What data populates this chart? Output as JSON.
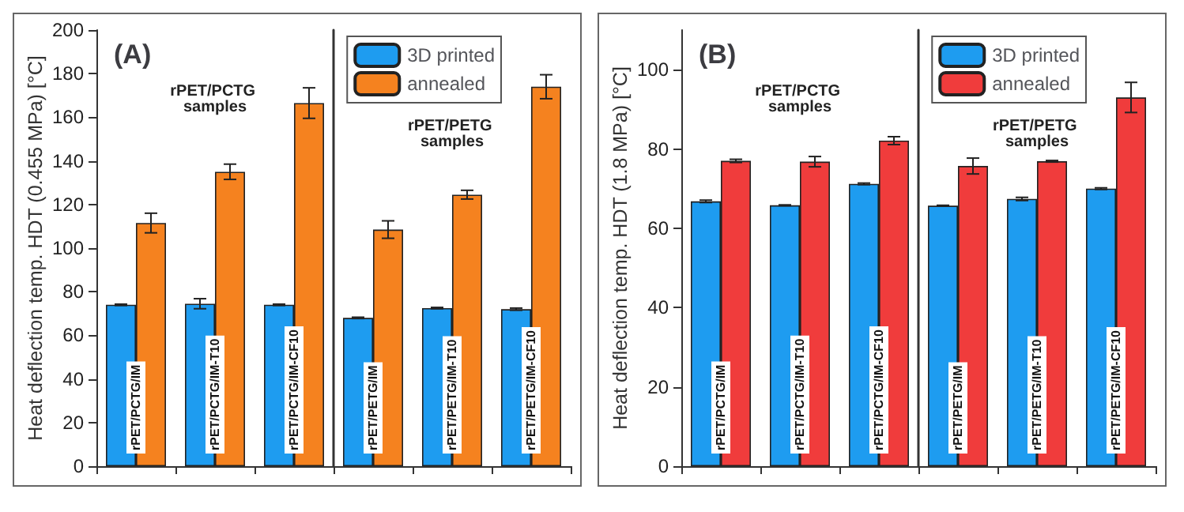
{
  "chart_data": [
    {
      "type": "bar",
      "title": "(A)",
      "ylabel": "Heat deflection temp. HDT (0.455 MPa) [°C]",
      "categories": [
        "rPET/PCTG/IM",
        "rPET/PCTG/IM-T10",
        "rPET/PCTG/IM-CF10",
        "rPET/PETG/IM",
        "rPET/PETG/IM-T10",
        "rPET/PETG/IM-CF10"
      ],
      "series": [
        {
          "name": "3D printed",
          "color": "#1e9cf0",
          "values": [
            74,
            74.5,
            74,
            68,
            72.5,
            72
          ],
          "errors": [
            0.3,
            2.3,
            0.3,
            0.3,
            0.3,
            0.5
          ]
        },
        {
          "name": "annealed",
          "color": "#f5821f",
          "values": [
            111.5,
            135,
            166.5,
            108.5,
            124.5,
            174
          ],
          "errors": [
            4.5,
            3.5,
            7,
            4,
            2,
            5.5
          ]
        }
      ],
      "ylim": [
        0,
        200
      ],
      "yticks": [
        0,
        20,
        40,
        60,
        80,
        100,
        120,
        140,
        160,
        180,
        200
      ],
      "annotations": [
        "rPET/PCTG samples",
        "rPET/PETG samples"
      ],
      "legend": "top right",
      "grid": false
    },
    {
      "type": "bar",
      "title": "(B)",
      "ylabel": "Heat deflection temp. HDT (1.8 MPa) [°C]",
      "categories": [
        "rPET/PCTG/IM",
        "rPET/PCTG/IM-T10",
        "rPET/PCTG/IM-CF10",
        "rPET/PETG/IM",
        "rPET/PETG/IM-T10",
        "rPET/PETG/IM-CF10"
      ],
      "series": [
        {
          "name": "3D printed",
          "color": "#1e9cf0",
          "values": [
            66.8,
            65.8,
            71.2,
            65.7,
            67.4,
            70.0
          ],
          "errors": [
            0.3,
            0.1,
            0.2,
            0.1,
            0.4,
            0.2
          ]
        },
        {
          "name": "annealed",
          "color": "#f03c3c",
          "values": [
            77,
            76.8,
            82.1,
            75.7,
            76.9,
            93
          ],
          "errors": [
            0.4,
            1.3,
            1,
            2,
            0.2,
            3.8
          ]
        }
      ],
      "ylim": [
        0,
        110
      ],
      "yticks": [
        0,
        20,
        40,
        60,
        80,
        100
      ],
      "annotations": [
        "rPET/PCTG samples",
        "rPET/PETG samples"
      ],
      "legend": "top right",
      "grid": false
    }
  ]
}
